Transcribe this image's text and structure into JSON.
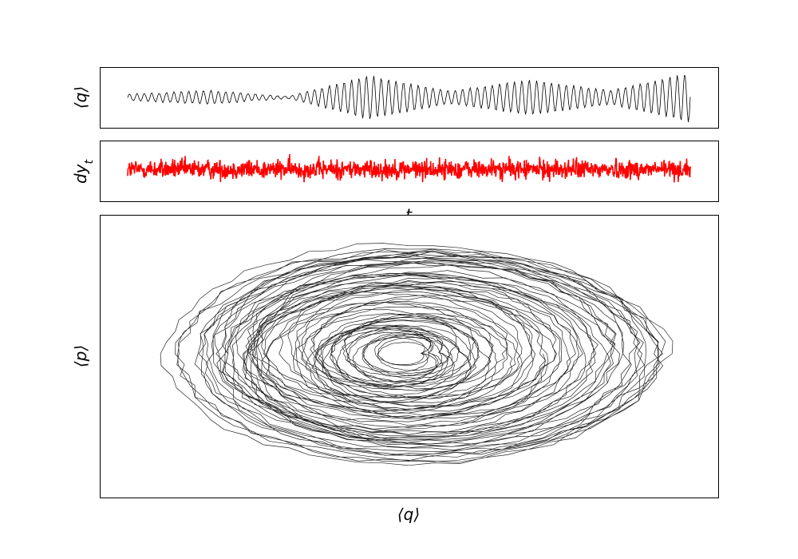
{
  "chart_data": [
    {
      "panel": "top",
      "type": "line",
      "title": "",
      "ylabel": "⟨q⟩",
      "xlabel": "",
      "axis_ticks": "none",
      "grid": false,
      "x_samples": 560,
      "series_color": "#000000",
      "ylim": [
        -1.15,
        1.15
      ],
      "amplitude_envelope_by_segment": [
        {
          "segment": 1,
          "start_amp": 0.12,
          "end_amp": 0.28
        },
        {
          "segment": 2,
          "start_amp": 0.28,
          "end_amp": 0.04
        },
        {
          "segment": 3,
          "start_amp": 0.04,
          "end_amp": 0.88
        },
        {
          "segment": 4,
          "start_amp": 0.88,
          "end_amp": 0.25
        },
        {
          "segment": 5,
          "start_amp": 0.25,
          "end_amp": 0.72
        },
        {
          "segment": 6,
          "start_amp": 0.72,
          "end_amp": 0.28
        },
        {
          "segment": 7,
          "start_amp": 0.28,
          "end_amp": 1.0
        }
      ]
    },
    {
      "panel": "middle",
      "type": "line",
      "title": "",
      "ylabel": "dy_t",
      "ylabel_main": "dy",
      "ylabel_sub": "t",
      "xlabel": "t",
      "axis_ticks": "none",
      "grid": false,
      "series_color": "#ff0000",
      "ylim": [
        -1.0,
        1.0
      ],
      "noise_rms": 0.26,
      "x_samples": 1400
    },
    {
      "panel": "bottom",
      "type": "line",
      "title": "",
      "xlabel": "⟨q⟩",
      "ylabel": "⟨p⟩",
      "axis_ticks": "none",
      "grid": false,
      "series_color": "#1a1a1a",
      "xlim": [
        -1.1,
        1.1
      ],
      "ylim": [
        -1.1,
        1.1
      ],
      "description_of_shape": "phase-space trajectory, concentric noisy ellipses",
      "ring_radii": [
        0.05,
        0.08,
        0.12,
        0.16,
        0.2,
        0.24,
        0.28,
        0.33,
        0.38,
        0.43,
        0.48,
        0.53,
        0.58,
        0.63,
        0.68,
        0.73,
        0.78,
        0.83,
        0.88,
        0.92,
        0.96,
        1.0
      ]
    }
  ]
}
